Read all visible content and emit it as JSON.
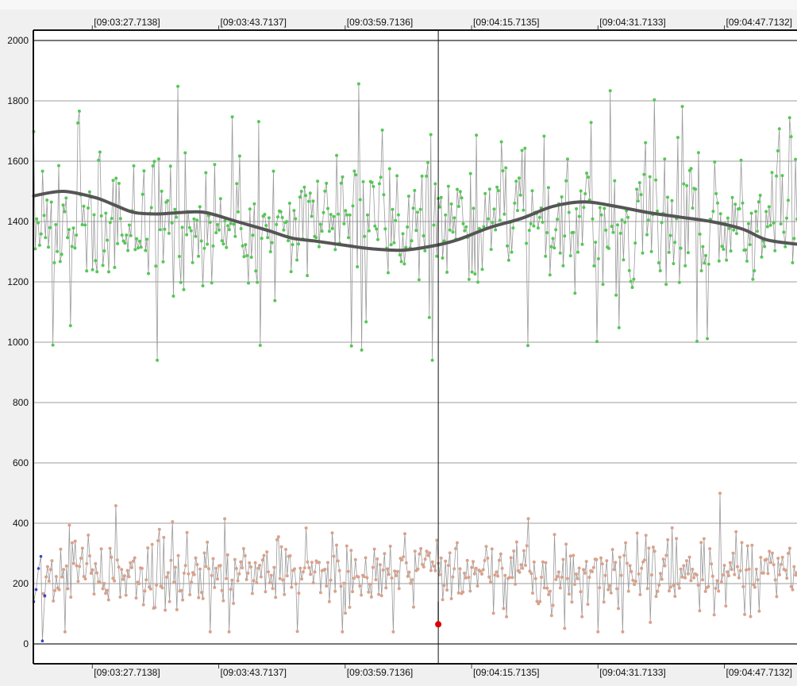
{
  "chart_data": {
    "type": "scatter",
    "title": "",
    "xlabel": "",
    "ylabel": "",
    "ylim": [
      0,
      2000
    ],
    "y_ticks": [
      0,
      200,
      400,
      600,
      800,
      1000,
      1200,
      1400,
      1600,
      1800,
      2000
    ],
    "x_tick_labels_top": [
      "[09:03:27.7138]",
      "[09:03:43.7137]",
      "[09:03:59.7136]",
      "[09:04:15.7135]",
      "[09:04:31.7133]",
      "[09:04:47.7132]"
    ],
    "x_tick_labels_bottom": [
      "[09:03:27.7138]",
      "[09:03:43.7137]",
      "[09:03:59.7136]",
      "[09:04:15.7135]",
      "[09:04:31.7133]",
      "[09:04:47.7132]"
    ],
    "x_tick_seconds": [
      27.7138,
      43.7137,
      59.7136,
      75.7135,
      91.7133,
      107.7132
    ],
    "xlim_seconds": [
      20.25,
      116.9
    ],
    "cursor_seconds": 71.5,
    "grid": true,
    "colors": {
      "upper_points": "#55c855",
      "lower_points": "#d9a28c",
      "trend_line": "#555555",
      "connector": "#9a9a9a",
      "blue_series": "#3344cc",
      "marker": "#dd0000",
      "cursor": "#111111"
    },
    "series": [
      {
        "type": "scatter",
        "seed": 7,
        "count": 520,
        "mean": 1400,
        "spread": 180,
        "x_range": [
          20.3,
          116.9
        ],
        "approx_range": [
          940,
          1960
        ]
      },
      {
        "type": "line",
        "x": [
          20.3,
          24.0,
          28.0,
          30.5,
          33.0,
          36.0,
          39.0,
          42.0,
          46.0,
          50.0,
          53.0,
          56.0,
          60.0,
          63.0,
          67.0,
          71.0,
          74.0,
          78.0,
          82.0,
          86.0,
          90.0,
          94.0,
          98.0,
          102.0,
          106.0,
          110.0,
          113.0,
          116.9
        ],
        "y": [
          1485,
          1500,
          1480,
          1455,
          1430,
          1425,
          1430,
          1430,
          1400,
          1370,
          1345,
          1335,
          1320,
          1310,
          1305,
          1320,
          1340,
          1380,
          1410,
          1450,
          1465,
          1450,
          1430,
          1415,
          1400,
          1375,
          1340,
          1325
        ]
      },
      {
        "type": "scatter",
        "seed": 21,
        "count": 520,
        "mean": 240,
        "spread": 100,
        "x_range": [
          21.5,
          116.9
        ],
        "approx_range": [
          40,
          505
        ]
      },
      {
        "type": "scatter",
        "x": [
          20.3,
          20.6,
          20.9,
          21.2,
          21.4,
          21.7
        ],
        "y": [
          140,
          180,
          250,
          290,
          10,
          160
        ]
      },
      {
        "type": "marker",
        "x": 71.5,
        "y": 65,
        "stem_top": 140
      }
    ]
  }
}
